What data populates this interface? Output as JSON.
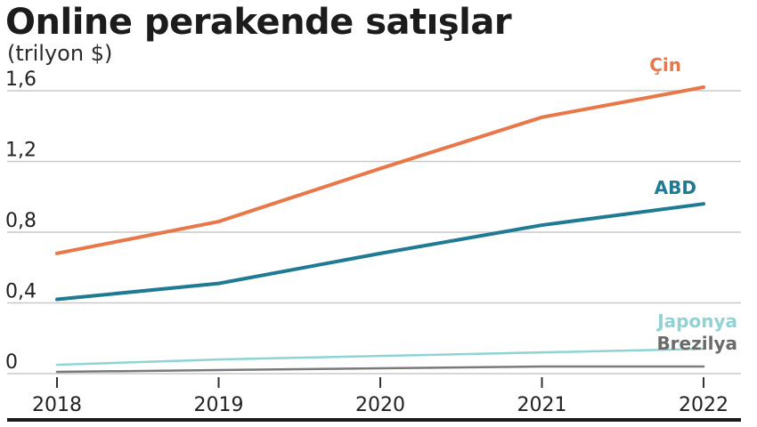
{
  "header": {
    "title": "Online perakende satışlar",
    "subtitle": "(trilyon $)"
  },
  "chart_data": {
    "type": "line",
    "title": "Online perakende satışlar",
    "subtitle": "(trilyon $)",
    "xlabel": "",
    "ylabel": "",
    "x": [
      "2018",
      "2019",
      "2020",
      "2021",
      "2022"
    ],
    "ylim": [
      0,
      1.6
    ],
    "yticks": [
      "0",
      "0,4",
      "0,8",
      "1,2",
      "1,6"
    ],
    "grid": true,
    "series": [
      {
        "name": "Çin",
        "color": "#e8774a",
        "values": [
          0.68,
          0.86,
          1.16,
          1.45,
          1.62
        ]
      },
      {
        "name": "ABD",
        "color": "#1f7a94",
        "values": [
          0.42,
          0.51,
          0.68,
          0.84,
          0.96
        ]
      },
      {
        "name": "Japonya",
        "color": "#8fd3d5",
        "values": [
          0.05,
          0.08,
          0.1,
          0.12,
          0.14
        ]
      },
      {
        "name": "Brezilya",
        "color": "#7a7a7a",
        "values": [
          0.01,
          0.02,
          0.03,
          0.04,
          0.04
        ]
      }
    ]
  }
}
